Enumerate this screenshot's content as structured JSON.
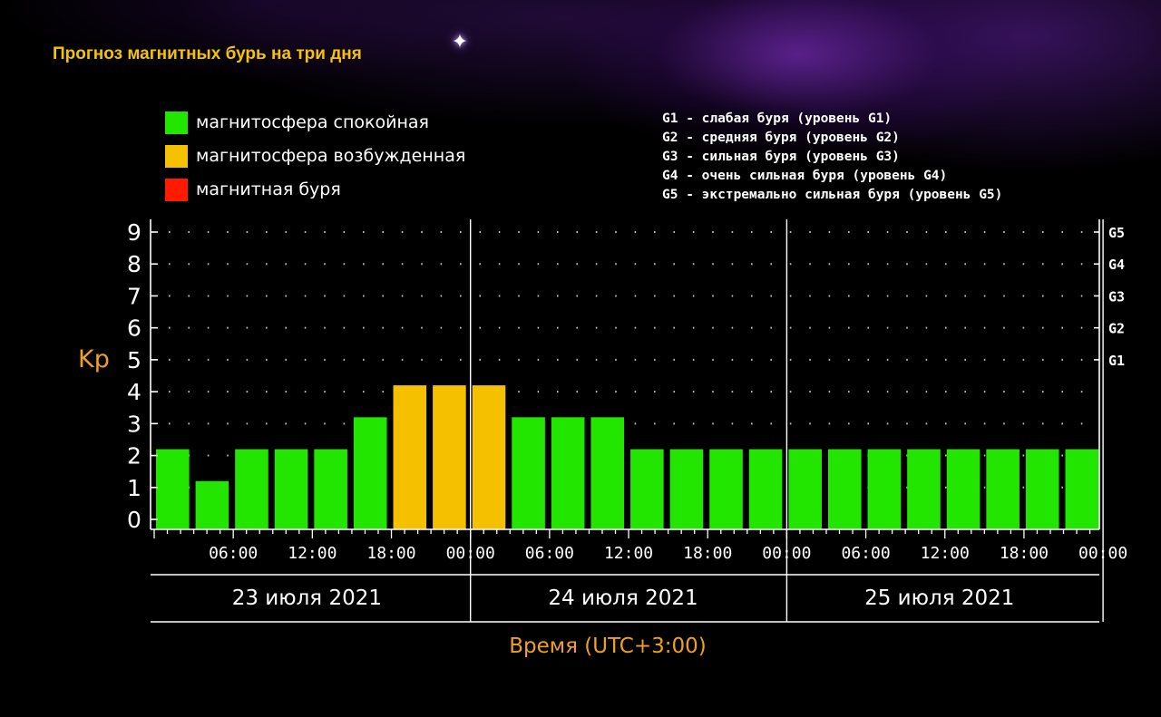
{
  "page": {
    "title": "Прогноз магнитных бурь на три дня",
    "legend": [
      {
        "label": "магнитосфера спокойная",
        "color": "#22e600"
      },
      {
        "label": "магнитосфера возбужденная",
        "color": "#f5c000"
      },
      {
        "label": "магнитная буря",
        "color": "#ff1a00"
      }
    ],
    "storm_levels": [
      "G1 - слабая буря (уровень G1)",
      "G2 - средняя буря (уровень G2)",
      "G3 - сильная буря (уровень G3)",
      "G4 - очень сильная буря (уровень G4)",
      "G5 - экстремально сильная буря (уровень G5)"
    ]
  },
  "chart_data": {
    "type": "bar",
    "title": "Прогноз магнитных бурь на три дня",
    "ylabel": "Kp",
    "xlabel": "Время (UTC+3:00)",
    "ylim": [
      0,
      9
    ],
    "yticks": [
      "0",
      "1",
      "2",
      "3",
      "4",
      "5",
      "6",
      "7",
      "8",
      "9"
    ],
    "right_ticks": [
      {
        "value": 5,
        "label": "G1"
      },
      {
        "value": 6,
        "label": "G2"
      },
      {
        "value": 7,
        "label": "G3"
      },
      {
        "value": 8,
        "label": "G4"
      },
      {
        "value": 9,
        "label": "G5"
      }
    ],
    "time_ticks": [
      "06:00",
      "12:00",
      "18:00",
      "00:00",
      "06:00",
      "12:00",
      "18:00",
      "00:00",
      "06:00",
      "12:00",
      "18:00",
      "00:00"
    ],
    "days": [
      "23 июля 2021",
      "24 июля 2021",
      "25 июля 2021"
    ],
    "values": [
      2,
      1,
      2,
      2,
      2,
      3,
      4,
      4,
      4,
      3,
      3,
      3,
      2,
      2,
      2,
      2,
      2,
      2,
      2,
      2,
      2,
      2,
      2,
      2
    ],
    "colors": {
      "quiet": "#22e600",
      "active": "#f5c000",
      "storm": "#ff1a00"
    },
    "grid": true
  }
}
